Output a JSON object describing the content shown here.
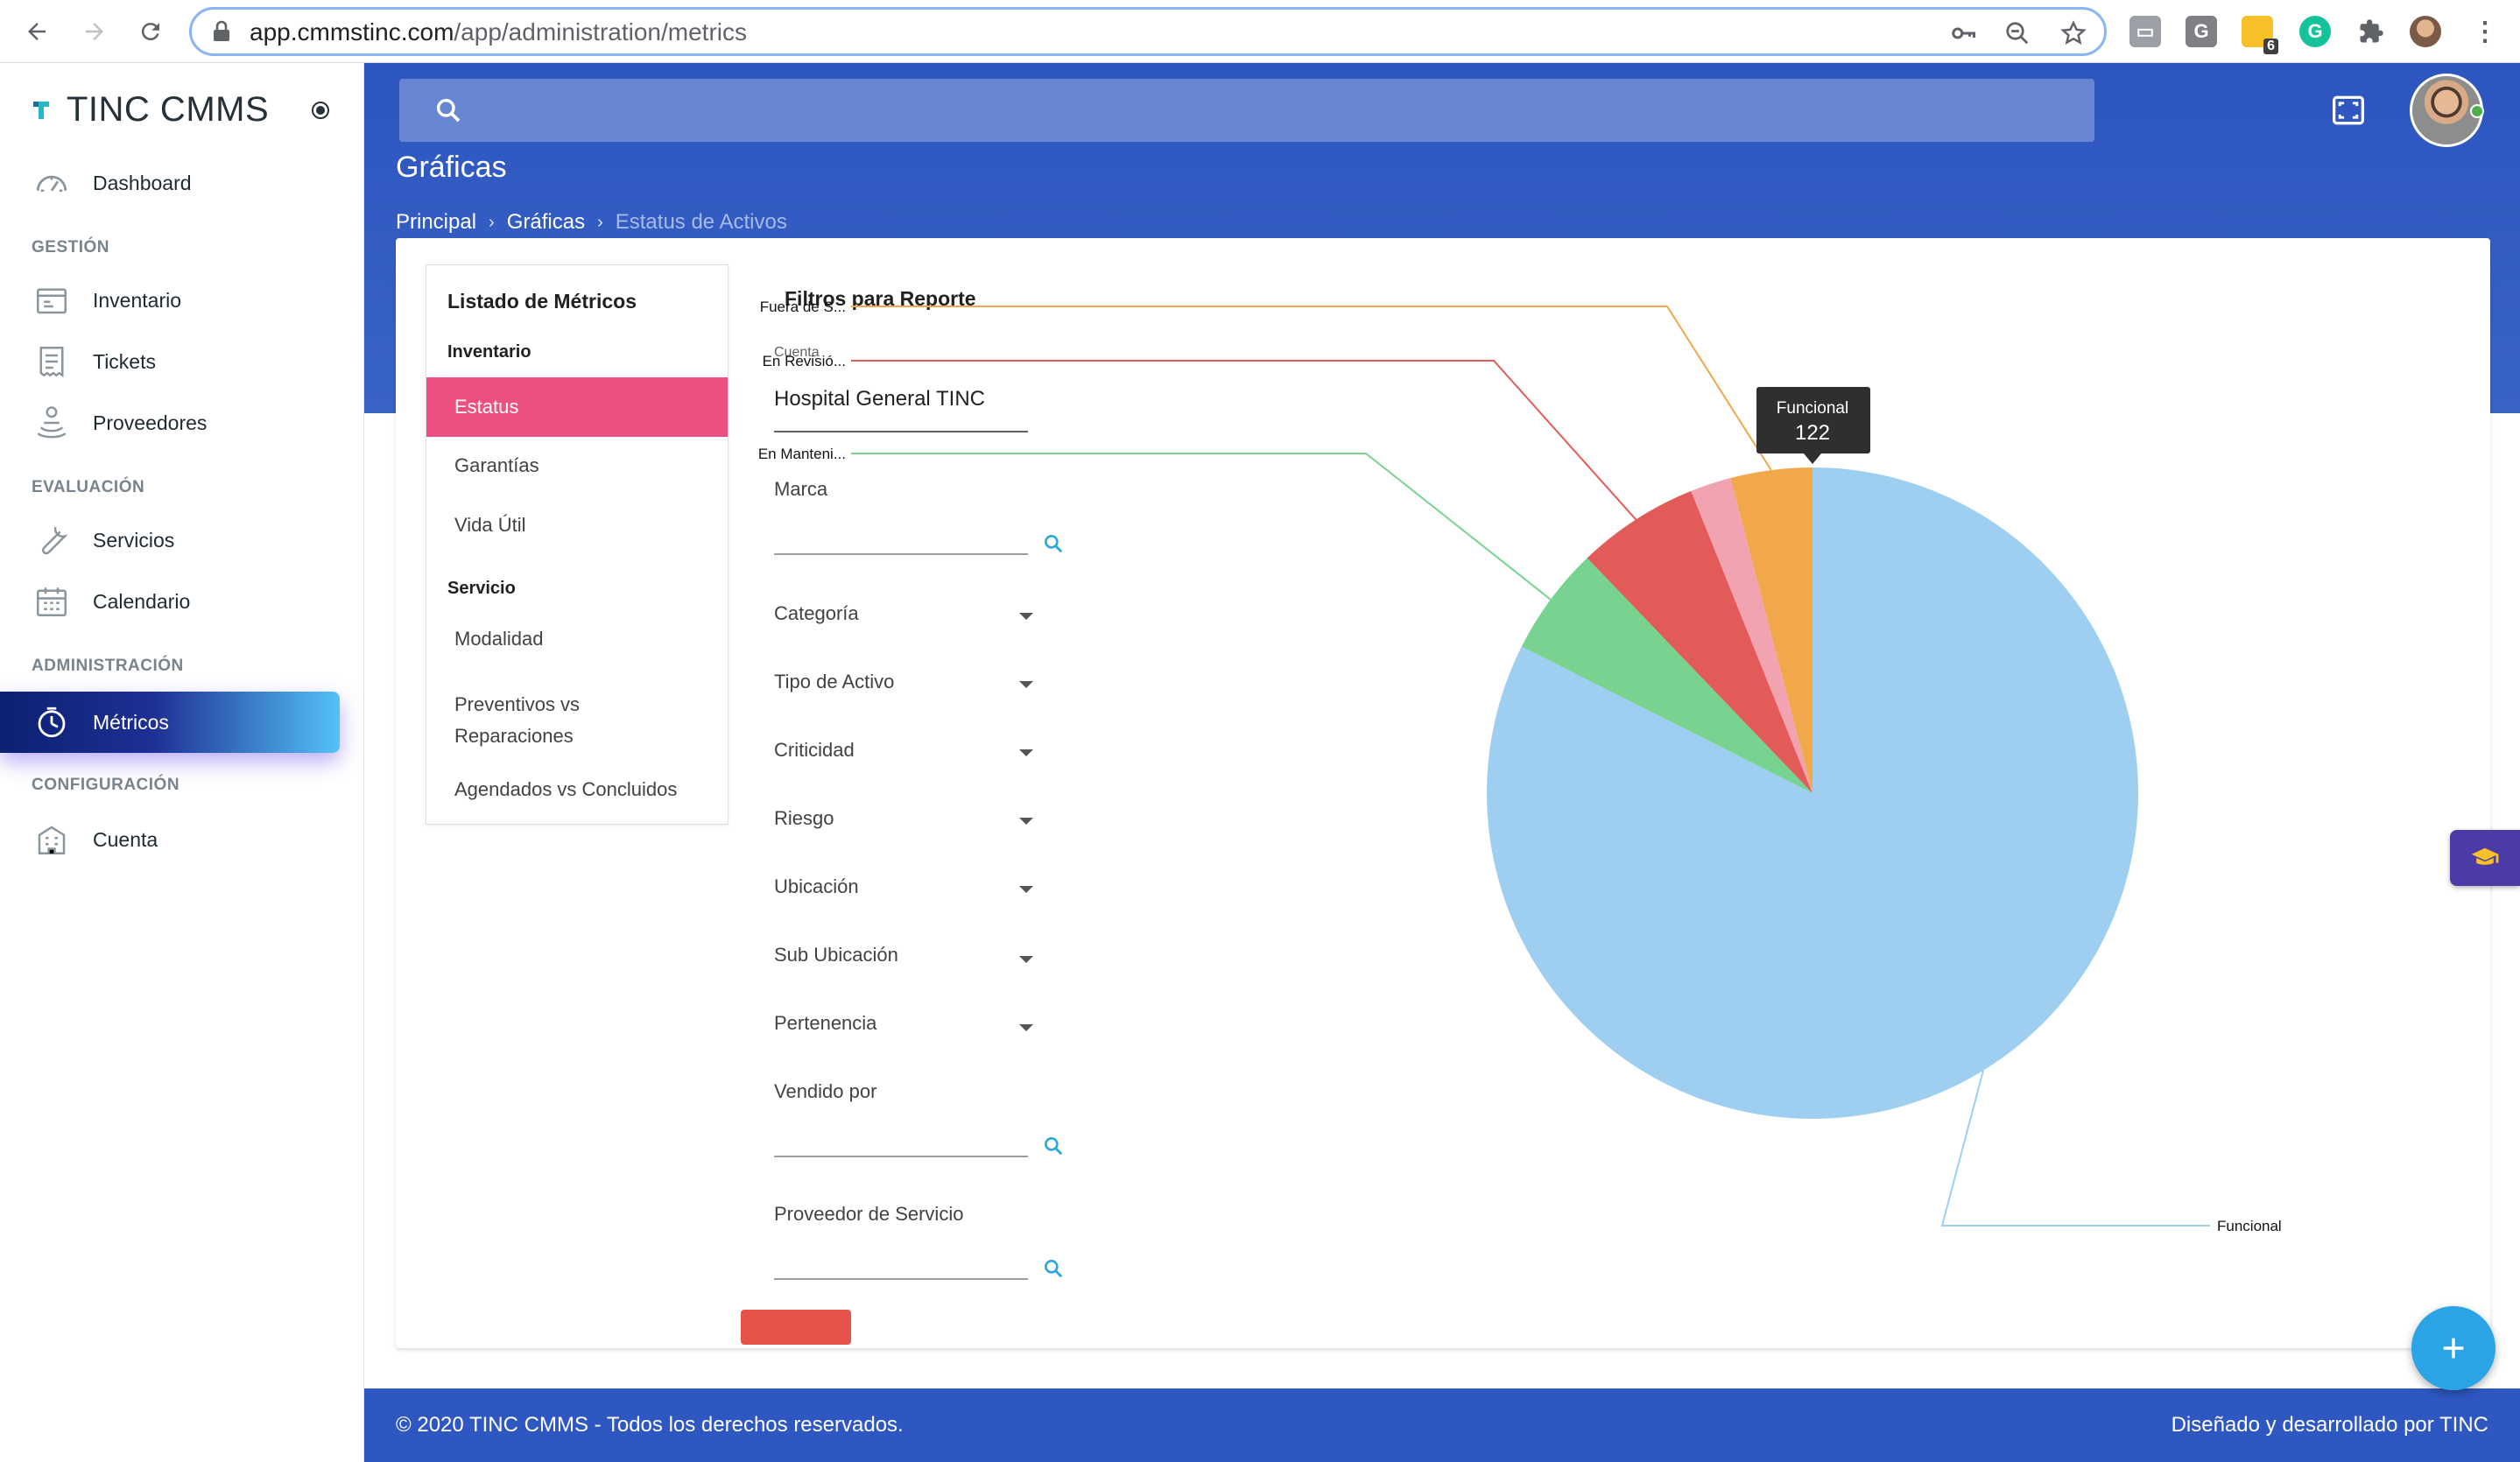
{
  "browser": {
    "url_host": "app.cmmstinc.com",
    "url_path": "/app/administration/metrics",
    "extension_badge": "6"
  },
  "sidebar": {
    "brand": "TINC CMMS",
    "items": [
      {
        "section": "",
        "label": "Dashboard",
        "icon": "speedometer-icon"
      },
      {
        "section": "GESTIÓN",
        "label": "Inventario",
        "icon": "inventory-icon"
      },
      {
        "section": "",
        "label": "Tickets",
        "icon": "ticket-icon"
      },
      {
        "section": "",
        "label": "Proveedores",
        "icon": "supplier-icon"
      },
      {
        "section": "EVALUACIÓN",
        "label": "Servicios",
        "icon": "wrench-icon"
      },
      {
        "section": "",
        "label": "Calendario",
        "icon": "calendar-icon"
      },
      {
        "section": "ADMINISTRACIÓN",
        "label": "Métricos",
        "icon": "metrics-icon",
        "active": true
      },
      {
        "section": "CONFIGURACIÓN",
        "label": "Cuenta",
        "icon": "building-icon"
      }
    ],
    "sections": [
      "GESTIÓN",
      "EVALUACIÓN",
      "ADMINISTRACIÓN",
      "CONFIGURACIÓN"
    ]
  },
  "header": {
    "title": "Gráficas",
    "breadcrumb": [
      "Principal",
      "Gráficas",
      "Estatus de Activos"
    ]
  },
  "metrics_list": {
    "title": "Listado de Métricos",
    "groups": [
      {
        "name": "Inventario",
        "items": [
          "Estatus",
          "Garantías",
          "Vida Útil"
        ]
      },
      {
        "name": "Servicio",
        "items": [
          "Modalidad",
          "Preventivos vs Reparaciones",
          "Agendados vs Concluidos"
        ]
      }
    ],
    "selected": "Estatus",
    "item_preventivos_line1": "Preventivos vs",
    "item_preventivos_line2": "Reparaciones"
  },
  "filters": {
    "title": "Filtros para Reporte",
    "cuenta_label": "Cuenta",
    "cuenta_value": "Hospital General TINC",
    "marca_label": "Marca",
    "selects": [
      "Categoría",
      "Tipo de Activo",
      "Criticidad",
      "Riesgo",
      "Ubicación",
      "Sub Ubicación",
      "Pertenencia"
    ],
    "vendido_label": "Vendido por",
    "proveedor_label": "Proveedor de Servicio"
  },
  "chart_data": {
    "type": "pie",
    "slices": [
      {
        "label": "Funcional",
        "value": 122,
        "color": "#9fcff0"
      },
      {
        "label": "En Manteni...",
        "value": 8,
        "color": "#77d38f"
      },
      {
        "label": "En Revisió...",
        "value": 9,
        "color": "#e35b58"
      },
      {
        "label": "",
        "value": 3,
        "color": "#f2a3b2"
      },
      {
        "label": "Fuera de S...",
        "value": 6,
        "color": "#f0a84a"
      }
    ],
    "tooltip": {
      "label": "Funcional",
      "value": "122"
    }
  },
  "footer": {
    "left": "© 2020 TINC CMMS - Todos los derechos reservados.",
    "right": "Diseñado y desarrollado por TINC"
  },
  "colors": {
    "header": "#2d55c0",
    "accent_pink": "#ec4f80",
    "fab": "#2ba4e6"
  }
}
